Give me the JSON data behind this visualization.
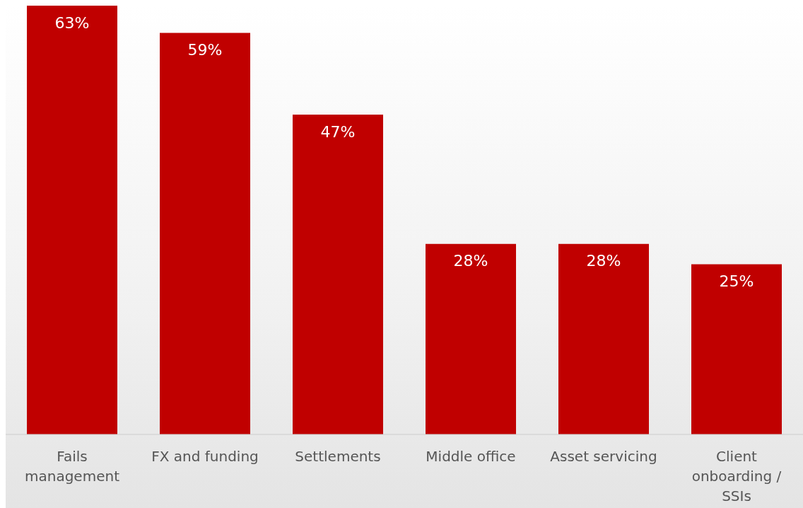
{
  "chart_data": {
    "type": "bar",
    "categories": [
      "Fails management",
      "FX and funding",
      "Settlements",
      "Middle office",
      "Asset servicing",
      "Client onboarding / SSIs"
    ],
    "values": [
      63,
      59,
      47,
      28,
      28,
      25
    ],
    "value_labels": [
      "63%",
      "59%",
      "47%",
      "28%",
      "28%",
      "25%"
    ],
    "color": "#c00000"
  }
}
